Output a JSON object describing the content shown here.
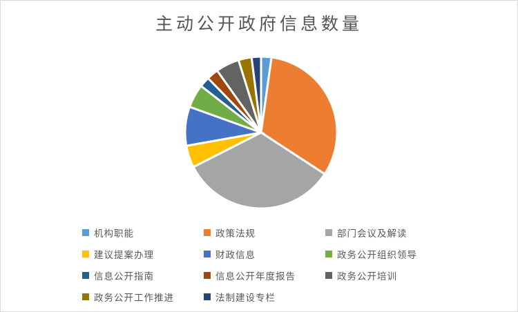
{
  "window": {
    "background_color": "#ffffff",
    "border_color": "#d9d9d9"
  },
  "chart_data": {
    "type": "pie",
    "title": "主动公开政府信息数量",
    "title_color": "#555555",
    "legend_position": "bottom",
    "legend_text_color": "#595959",
    "start_angle_deg": 0,
    "direction": "clockwise",
    "slice_gap_color": "#ffffff",
    "series": [
      {
        "label": "机构职能",
        "value_pct": 2.2,
        "color": "#5B9BD5"
      },
      {
        "label": "政策法规",
        "value_pct": 32.0,
        "color": "#ED7D31"
      },
      {
        "label": "部门会议及解读",
        "value_pct": 33.3,
        "color": "#A5A5A5"
      },
      {
        "label": "建议提案办理",
        "value_pct": 4.7,
        "color": "#FFC000"
      },
      {
        "label": "财政信息",
        "value_pct": 8.3,
        "color": "#4472C4"
      },
      {
        "label": "政务公开组织领导",
        "value_pct": 5.0,
        "color": "#70AD47"
      },
      {
        "label": "信息公开指南",
        "value_pct": 2.2,
        "color": "#255E91"
      },
      {
        "label": "信息公开年度报告",
        "value_pct": 2.5,
        "color": "#9E480E"
      },
      {
        "label": "政务公开培训",
        "value_pct": 5.0,
        "color": "#636363"
      },
      {
        "label": "政务公开工作推进",
        "value_pct": 2.8,
        "color": "#997300"
      },
      {
        "label": "法制建设专栏",
        "value_pct": 2.0,
        "color": "#264478"
      }
    ]
  }
}
